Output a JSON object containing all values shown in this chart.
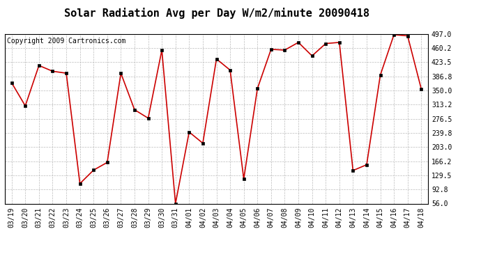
{
  "title": "Solar Radiation Avg per Day W/m2/minute 20090418",
  "copyright": "Copyright 2009 Cartronics.com",
  "dates": [
    "03/19",
    "03/20",
    "03/21",
    "03/22",
    "03/23",
    "03/24",
    "03/25",
    "03/26",
    "03/27",
    "03/28",
    "03/29",
    "03/30",
    "03/31",
    "04/01",
    "04/02",
    "04/03",
    "04/04",
    "04/05",
    "04/06",
    "04/07",
    "04/08",
    "04/09",
    "04/10",
    "04/11",
    "04/12",
    "04/13",
    "04/14",
    "04/15",
    "04/16",
    "04/17",
    "04/18"
  ],
  "values": [
    370,
    310,
    415,
    400,
    395,
    108,
    143,
    163,
    395,
    300,
    278,
    455,
    56,
    242,
    213,
    432,
    403,
    120,
    355,
    457,
    455,
    475,
    440,
    472,
    475,
    142,
    157,
    390,
    495,
    492,
    354
  ],
  "ylim": [
    56.0,
    497.0
  ],
  "yticks": [
    56.0,
    92.8,
    129.5,
    166.2,
    203.0,
    239.8,
    276.5,
    313.2,
    350.0,
    386.8,
    423.5,
    460.2,
    497.0
  ],
  "line_color": "#cc0000",
  "marker_color": "#000000",
  "bg_color": "#ffffff",
  "grid_color": "#bbbbbb",
  "title_fontsize": 11,
  "copyright_fontsize": 7,
  "tick_fontsize": 7
}
